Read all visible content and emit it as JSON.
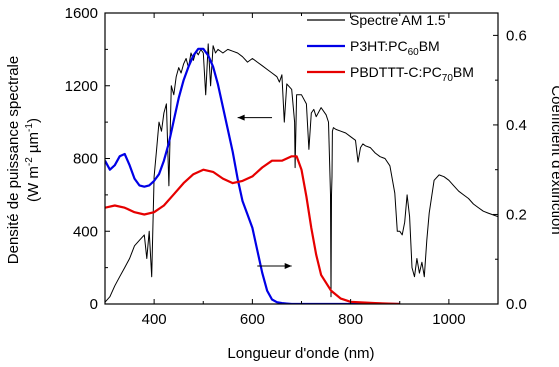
{
  "chart_data": {
    "type": "line",
    "xlabel": "Longueur d'onde (nm)",
    "ylabel_left": {
      "line1": "Densité de puissance spectrale",
      "open": "(W m",
      "exp1": "-2",
      "mid": " µm",
      "exp2": "-1",
      "close": ")"
    },
    "ylabel_right": "Coefficient d'extinction",
    "xlim": [
      300,
      1100
    ],
    "ylim_left": [
      0,
      1600
    ],
    "ylim_right": [
      0,
      0.65
    ],
    "x_ticks": [
      400,
      600,
      800,
      1000
    ],
    "x_tick_labels": [
      "400",
      "600",
      "800",
      "1000"
    ],
    "y_left_ticks": [
      0,
      400,
      800,
      1200,
      1600
    ],
    "y_left_tick_labels": [
      "0",
      "400",
      "800",
      "1200",
      "1600"
    ],
    "y_right_ticks": [
      0.0,
      0.2,
      0.4,
      0.6
    ],
    "y_right_tick_labels": [
      "0.0",
      "0.2",
      "0.4",
      "0.6"
    ],
    "legend": {
      "placement": "top-right",
      "entries": [
        {
          "key": "am15",
          "parts": [
            {
              "t": "Spectre AM 1.5"
            }
          ]
        },
        {
          "key": "p3ht",
          "parts": [
            {
              "t": "P3HT:PC"
            },
            {
              "t": "60",
              "sub": true
            },
            {
              "t": "BM"
            }
          ]
        },
        {
          "key": "pbdttt",
          "parts": [
            {
              "t": "PBDTTT-C:PC"
            },
            {
              "t": "70",
              "sub": true
            },
            {
              "t": "BM"
            }
          ]
        }
      ]
    },
    "colors": {
      "am15": "#000000",
      "p3ht": "#0000e6",
      "pbdttt": "#e60000"
    },
    "arrows": [
      {
        "axis": "left",
        "from_x": 640,
        "to_x": 570,
        "y": 1025
      },
      {
        "axis": "right",
        "from_x": 610,
        "to_x": 680,
        "y": 0.085
      }
    ],
    "series": [
      {
        "key": "am15",
        "name": "Spectre AM 1.5",
        "axis": "left",
        "x": [
          300,
          310,
          320,
          330,
          340,
          350,
          360,
          370,
          380,
          385,
          390,
          395,
          400,
          405,
          410,
          415,
          420,
          425,
          430,
          435,
          440,
          445,
          450,
          455,
          460,
          465,
          470,
          475,
          480,
          485,
          490,
          495,
          500,
          505,
          510,
          515,
          520,
          525,
          530,
          540,
          550,
          560,
          570,
          580,
          590,
          600,
          610,
          620,
          630,
          640,
          650,
          655,
          660,
          665,
          670,
          680,
          686,
          687,
          690,
          700,
          710,
          715,
          720,
          725,
          730,
          740,
          750,
          755,
          759,
          760,
          761,
          762,
          763,
          765,
          770,
          780,
          790,
          800,
          810,
          815,
          820,
          825,
          830,
          840,
          850,
          860,
          870,
          880,
          890,
          895,
          900,
          905,
          910,
          915,
          920,
          925,
          930,
          935,
          940,
          945,
          950,
          955,
          960,
          970,
          980,
          990,
          1000,
          1010,
          1020,
          1030,
          1040,
          1050,
          1060,
          1070,
          1080,
          1090,
          1100
        ],
        "y": [
          10,
          40,
          100,
          150,
          200,
          250,
          320,
          350,
          380,
          250,
          400,
          150,
          700,
          850,
          1000,
          950,
          1050,
          1100,
          650,
          1200,
          1150,
          1250,
          1300,
          1270,
          1320,
          1350,
          1300,
          1380,
          1340,
          1390,
          1370,
          1400,
          1380,
          1150,
          1430,
          1200,
          1420,
          1380,
          1400,
          1380,
          1400,
          1390,
          1380,
          1360,
          1330,
          1350,
          1330,
          1310,
          1290,
          1270,
          1250,
          1220,
          1260,
          1000,
          1210,
          1180,
          1000,
          750,
          1150,
          1150,
          1100,
          850,
          1050,
          1070,
          1030,
          1080,
          1040,
          1000,
          600,
          40,
          600,
          700,
          950,
          970,
          960,
          950,
          940,
          920,
          900,
          780,
          860,
          880,
          870,
          860,
          830,
          810,
          800,
          760,
          610,
          400,
          400,
          380,
          450,
          600,
          480,
          200,
          150,
          250,
          170,
          230,
          150,
          350,
          500,
          680,
          710,
          700,
          680,
          650,
          620,
          600,
          580,
          550,
          530,
          510,
          500,
          490,
          480
        ]
      },
      {
        "key": "p3ht",
        "name": "P3HT:PC60BM",
        "axis": "right",
        "x": [
          300,
          310,
          320,
          330,
          340,
          350,
          360,
          370,
          380,
          390,
          400,
          410,
          420,
          430,
          440,
          450,
          460,
          470,
          480,
          490,
          500,
          510,
          520,
          530,
          540,
          550,
          560,
          570,
          580,
          590,
          600,
          610,
          620,
          630,
          640,
          650,
          660,
          670,
          680,
          700,
          750,
          800,
          900
        ],
        "y": [
          0.32,
          0.3,
          0.31,
          0.33,
          0.335,
          0.31,
          0.28,
          0.265,
          0.262,
          0.265,
          0.275,
          0.29,
          0.32,
          0.36,
          0.41,
          0.46,
          0.5,
          0.53,
          0.555,
          0.57,
          0.57,
          0.555,
          0.53,
          0.49,
          0.44,
          0.39,
          0.34,
          0.28,
          0.23,
          0.2,
          0.17,
          0.12,
          0.07,
          0.03,
          0.01,
          0.004,
          0.002,
          0.001,
          0.0,
          0.0,
          0.0,
          0.0,
          0.0
        ]
      },
      {
        "key": "pbdttt",
        "name": "PBDTTT-C:PC70BM",
        "axis": "right",
        "x": [
          300,
          320,
          340,
          360,
          380,
          400,
          420,
          440,
          460,
          480,
          500,
          520,
          540,
          560,
          580,
          600,
          620,
          640,
          660,
          670,
          680,
          690,
          700,
          710,
          720,
          730,
          740,
          760,
          780,
          800,
          850,
          900
        ],
        "y": [
          0.215,
          0.22,
          0.215,
          0.205,
          0.2,
          0.205,
          0.22,
          0.245,
          0.27,
          0.29,
          0.3,
          0.295,
          0.28,
          0.27,
          0.275,
          0.285,
          0.305,
          0.32,
          0.32,
          0.325,
          0.33,
          0.33,
          0.3,
          0.24,
          0.17,
          0.11,
          0.065,
          0.03,
          0.012,
          0.005,
          0.002,
          0.0
        ]
      }
    ]
  }
}
